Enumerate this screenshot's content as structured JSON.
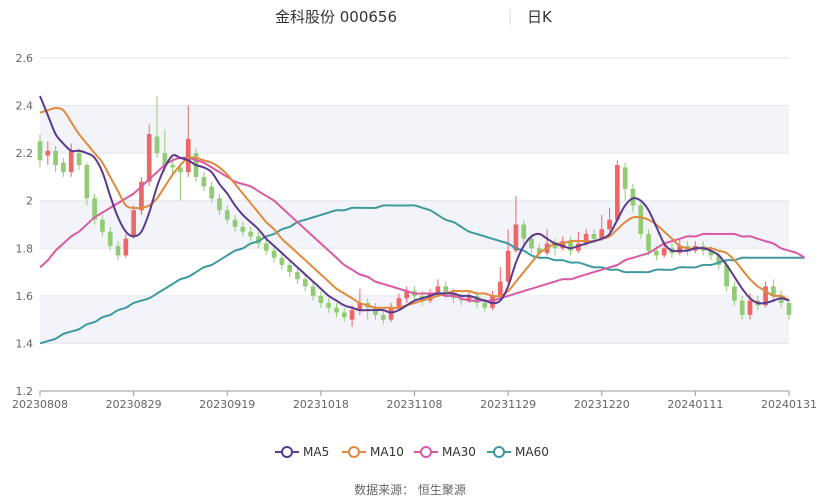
{
  "header": {
    "stock_name": "金科股份",
    "stock_code": "000656",
    "period": "日K"
  },
  "source": "数据来源： 恒生聚源",
  "chart_data": {
    "type": "candlestick",
    "title": "金科股份 000656 日K",
    "ylim": [
      1.2,
      2.6
    ],
    "y_ticks": [
      "1.2",
      "1.4",
      "1.6",
      "1.8",
      "2",
      "2.2",
      "2.4",
      "2.6"
    ],
    "x_tick_labels": [
      "20230808",
      "20230829",
      "20230919",
      "20231018",
      "20231108",
      "20231129",
      "20231220",
      "20240111",
      "20240131"
    ],
    "grid": true,
    "legend_position": "bottom",
    "colors": {
      "up": "#ee6666",
      "down": "#91cc75",
      "MA5": "#5b3a8e",
      "MA10": "#e08a3c",
      "MA30": "#d95ba6",
      "MA60": "#3f9aa0"
    },
    "candles": [
      [
        2.25,
        2.17,
        2.28,
        2.14
      ],
      [
        2.19,
        2.21,
        2.25,
        2.15
      ],
      [
        2.21,
        2.15,
        2.23,
        2.12
      ],
      [
        2.16,
        2.12,
        2.18,
        2.1
      ],
      [
        2.12,
        2.21,
        2.24,
        2.1
      ],
      [
        2.2,
        2.15,
        2.22,
        2.13
      ],
      [
        2.15,
        2.01,
        2.16,
        1.98
      ],
      [
        2.01,
        1.92,
        2.03,
        1.9
      ],
      [
        1.92,
        1.87,
        1.94,
        1.85
      ],
      [
        1.87,
        1.81,
        1.89,
        1.79
      ],
      [
        1.81,
        1.77,
        1.83,
        1.75
      ],
      [
        1.77,
        1.84,
        1.86,
        1.76
      ],
      [
        1.85,
        1.96,
        1.98,
        1.84
      ],
      [
        1.96,
        2.08,
        2.1,
        1.94
      ],
      [
        2.08,
        2.28,
        2.32,
        2.06
      ],
      [
        2.27,
        2.2,
        2.44,
        2.18
      ],
      [
        2.2,
        2.15,
        2.3,
        2.12
      ],
      [
        2.15,
        2.14,
        2.18,
        2.1
      ],
      [
        2.14,
        2.12,
        2.16,
        2.0
      ],
      [
        2.12,
        2.26,
        2.4,
        2.1
      ],
      [
        2.2,
        2.1,
        2.22,
        2.08
      ],
      [
        2.1,
        2.06,
        2.12,
        2.04
      ],
      [
        2.06,
        2.01,
        2.08,
        1.99
      ],
      [
        2.01,
        1.96,
        2.03,
        1.94
      ],
      [
        1.96,
        1.92,
        1.98,
        1.9
      ],
      [
        1.92,
        1.89,
        1.94,
        1.87
      ],
      [
        1.89,
        1.87,
        1.91,
        1.85
      ],
      [
        1.87,
        1.85,
        1.89,
        1.83
      ],
      [
        1.85,
        1.82,
        1.87,
        1.8
      ],
      [
        1.82,
        1.79,
        1.84,
        1.77
      ],
      [
        1.79,
        1.76,
        1.81,
        1.74
      ],
      [
        1.76,
        1.73,
        1.78,
        1.71
      ],
      [
        1.73,
        1.7,
        1.75,
        1.68
      ],
      [
        1.7,
        1.67,
        1.72,
        1.65
      ],
      [
        1.67,
        1.64,
        1.69,
        1.62
      ],
      [
        1.64,
        1.6,
        1.66,
        1.58
      ],
      [
        1.6,
        1.57,
        1.62,
        1.55
      ],
      [
        1.57,
        1.55,
        1.59,
        1.53
      ],
      [
        1.55,
        1.53,
        1.57,
        1.51
      ],
      [
        1.53,
        1.51,
        1.55,
        1.49
      ],
      [
        1.5,
        1.54,
        1.56,
        1.47
      ],
      [
        1.54,
        1.57,
        1.63,
        1.52
      ],
      [
        1.57,
        1.55,
        1.59,
        1.5
      ],
      [
        1.55,
        1.52,
        1.57,
        1.5
      ],
      [
        1.52,
        1.5,
        1.54,
        1.48
      ],
      [
        1.5,
        1.55,
        1.57,
        1.49
      ],
      [
        1.55,
        1.59,
        1.61,
        1.54
      ],
      [
        1.59,
        1.62,
        1.64,
        1.57
      ],
      [
        1.62,
        1.6,
        1.64,
        1.58
      ],
      [
        1.6,
        1.58,
        1.62,
        1.56
      ],
      [
        1.58,
        1.61,
        1.63,
        1.57
      ],
      [
        1.61,
        1.64,
        1.67,
        1.6
      ],
      [
        1.64,
        1.61,
        1.66,
        1.59
      ],
      [
        1.61,
        1.59,
        1.63,
        1.57
      ],
      [
        1.59,
        1.58,
        1.61,
        1.56
      ],
      [
        1.58,
        1.6,
        1.62,
        1.57
      ],
      [
        1.6,
        1.57,
        1.62,
        1.55
      ],
      [
        1.57,
        1.55,
        1.59,
        1.53
      ],
      [
        1.55,
        1.6,
        1.62,
        1.54
      ],
      [
        1.6,
        1.66,
        1.72,
        1.59
      ],
      [
        1.66,
        1.79,
        1.88,
        1.65
      ],
      [
        1.79,
        1.9,
        2.02,
        1.78
      ],
      [
        1.9,
        1.84,
        1.92,
        1.82
      ],
      [
        1.84,
        1.8,
        1.86,
        1.78
      ],
      [
        1.8,
        1.78,
        1.82,
        1.76
      ],
      [
        1.78,
        1.82,
        1.88,
        1.77
      ],
      [
        1.82,
        1.8,
        1.84,
        1.77
      ],
      [
        1.8,
        1.83,
        1.85,
        1.79
      ],
      [
        1.83,
        1.79,
        1.85,
        1.77
      ],
      [
        1.79,
        1.82,
        1.87,
        1.78
      ],
      [
        1.82,
        1.86,
        1.88,
        1.81
      ],
      [
        1.86,
        1.84,
        1.88,
        1.82
      ],
      [
        1.84,
        1.88,
        1.94,
        1.83
      ],
      [
        1.88,
        1.92,
        1.97,
        1.87
      ],
      [
        1.92,
        2.15,
        2.17,
        1.91
      ],
      [
        2.14,
        2.05,
        2.16,
        2.0
      ],
      [
        2.05,
        1.98,
        2.07,
        1.95
      ],
      [
        1.98,
        1.86,
        1.99,
        1.84
      ],
      [
        1.86,
        1.79,
        1.88,
        1.77
      ],
      [
        1.79,
        1.77,
        1.81,
        1.75
      ],
      [
        1.77,
        1.8,
        1.82,
        1.76
      ],
      [
        1.8,
        1.78,
        1.82,
        1.76
      ],
      [
        1.78,
        1.81,
        1.84,
        1.77
      ],
      [
        1.81,
        1.79,
        1.83,
        1.77
      ],
      [
        1.79,
        1.81,
        1.83,
        1.78
      ],
      [
        1.81,
        1.79,
        1.83,
        1.77
      ],
      [
        1.79,
        1.77,
        1.81,
        1.75
      ],
      [
        1.77,
        1.73,
        1.79,
        1.71
      ],
      [
        1.73,
        1.64,
        1.75,
        1.62
      ],
      [
        1.64,
        1.58,
        1.66,
        1.56
      ],
      [
        1.58,
        1.52,
        1.6,
        1.5
      ],
      [
        1.52,
        1.58,
        1.61,
        1.5
      ],
      [
        1.58,
        1.56,
        1.6,
        1.54
      ],
      [
        1.56,
        1.64,
        1.66,
        1.55
      ],
      [
        1.64,
        1.6,
        1.67,
        1.58
      ],
      [
        1.6,
        1.57,
        1.62,
        1.55
      ],
      [
        1.57,
        1.52,
        1.59,
        1.5
      ]
    ],
    "ma": {
      "MA5": [
        2.44,
        2.36,
        2.28,
        2.24,
        2.21,
        2.21,
        2.2,
        2.18,
        2.12,
        2.02,
        1.93,
        1.87,
        1.85,
        1.87,
        1.95,
        2.06,
        2.14,
        2.19,
        2.18,
        2.17,
        2.15,
        2.14,
        2.12,
        2.07,
        2.03,
        1.98,
        1.94,
        1.91,
        1.88,
        1.84,
        1.81,
        1.78,
        1.75,
        1.72,
        1.69,
        1.66,
        1.63,
        1.6,
        1.58,
        1.56,
        1.55,
        1.54,
        1.54,
        1.54,
        1.54,
        1.53,
        1.54,
        1.56,
        1.58,
        1.59,
        1.6,
        1.61,
        1.61,
        1.61,
        1.6,
        1.6,
        1.59,
        1.58,
        1.57,
        1.58,
        1.64,
        1.74,
        1.81,
        1.85,
        1.86,
        1.84,
        1.82,
        1.81,
        1.8,
        1.81,
        1.82,
        1.83,
        1.84,
        1.86,
        1.92,
        1.98,
        2.01,
        2.0,
        1.96,
        1.89,
        1.82,
        1.79,
        1.79,
        1.79,
        1.8,
        1.8,
        1.79,
        1.77,
        1.73,
        1.68,
        1.63,
        1.59,
        1.57,
        1.57,
        1.58,
        1.59,
        1.58
      ],
      "MA10": [
        2.37,
        2.38,
        2.39,
        2.38,
        2.33,
        2.28,
        2.24,
        2.2,
        2.16,
        2.1,
        2.04,
        1.98,
        1.97,
        1.97,
        1.98,
        2.01,
        2.06,
        2.11,
        2.15,
        2.18,
        2.18,
        2.17,
        2.16,
        2.14,
        2.11,
        2.07,
        2.03,
        1.99,
        1.95,
        1.91,
        1.88,
        1.84,
        1.81,
        1.78,
        1.75,
        1.72,
        1.69,
        1.66,
        1.63,
        1.61,
        1.59,
        1.57,
        1.56,
        1.55,
        1.55,
        1.55,
        1.55,
        1.56,
        1.57,
        1.58,
        1.59,
        1.6,
        1.61,
        1.62,
        1.62,
        1.62,
        1.61,
        1.61,
        1.6,
        1.6,
        1.62,
        1.66,
        1.7,
        1.74,
        1.78,
        1.8,
        1.82,
        1.82,
        1.83,
        1.83,
        1.83,
        1.83,
        1.84,
        1.85,
        1.88,
        1.91,
        1.93,
        1.93,
        1.92,
        1.9,
        1.87,
        1.84,
        1.81,
        1.8,
        1.8,
        1.8,
        1.8,
        1.79,
        1.78,
        1.75,
        1.71,
        1.67,
        1.64,
        1.62,
        1.6,
        1.6,
        1.58
      ],
      "MA30": [
        1.72,
        1.75,
        1.79,
        1.82,
        1.85,
        1.87,
        1.9,
        1.93,
        1.95,
        1.97,
        1.99,
        2.01,
        2.03,
        2.06,
        2.09,
        2.12,
        2.15,
        2.17,
        2.18,
        2.18,
        2.17,
        2.16,
        2.14,
        2.12,
        2.1,
        2.08,
        2.07,
        2.06,
        2.04,
        2.02,
        2.0,
        1.97,
        1.94,
        1.91,
        1.88,
        1.85,
        1.82,
        1.79,
        1.76,
        1.73,
        1.71,
        1.69,
        1.68,
        1.66,
        1.65,
        1.64,
        1.63,
        1.62,
        1.61,
        1.61,
        1.61,
        1.61,
        1.6,
        1.6,
        1.59,
        1.58,
        1.58,
        1.58,
        1.58,
        1.59,
        1.6,
        1.61,
        1.62,
        1.63,
        1.64,
        1.65,
        1.66,
        1.67,
        1.67,
        1.68,
        1.69,
        1.7,
        1.71,
        1.72,
        1.73,
        1.75,
        1.76,
        1.77,
        1.78,
        1.8,
        1.82,
        1.83,
        1.84,
        1.85,
        1.85,
        1.86,
        1.86,
        1.86,
        1.86,
        1.86,
        1.85,
        1.85,
        1.84,
        1.83,
        1.82,
        1.8,
        1.79,
        1.78,
        1.76
      ],
      "MA60": [
        1.4,
        1.41,
        1.42,
        1.44,
        1.45,
        1.46,
        1.48,
        1.49,
        1.51,
        1.52,
        1.54,
        1.55,
        1.57,
        1.58,
        1.59,
        1.61,
        1.63,
        1.65,
        1.67,
        1.68,
        1.7,
        1.72,
        1.73,
        1.75,
        1.77,
        1.79,
        1.8,
        1.82,
        1.83,
        1.85,
        1.86,
        1.88,
        1.89,
        1.91,
        1.92,
        1.93,
        1.94,
        1.95,
        1.96,
        1.96,
        1.97,
        1.97,
        1.97,
        1.97,
        1.98,
        1.98,
        1.98,
        1.98,
        1.98,
        1.97,
        1.96,
        1.94,
        1.92,
        1.91,
        1.89,
        1.87,
        1.86,
        1.85,
        1.84,
        1.83,
        1.82,
        1.8,
        1.79,
        1.77,
        1.76,
        1.76,
        1.75,
        1.75,
        1.74,
        1.74,
        1.73,
        1.72,
        1.72,
        1.71,
        1.71,
        1.7,
        1.7,
        1.7,
        1.7,
        1.71,
        1.71,
        1.71,
        1.72,
        1.72,
        1.72,
        1.73,
        1.73,
        1.74,
        1.75,
        1.75,
        1.76,
        1.76,
        1.76,
        1.76,
        1.76,
        1.76,
        1.76,
        1.76,
        1.76
      ]
    },
    "legend": [
      "MA5",
      "MA10",
      "MA30",
      "MA60"
    ]
  }
}
